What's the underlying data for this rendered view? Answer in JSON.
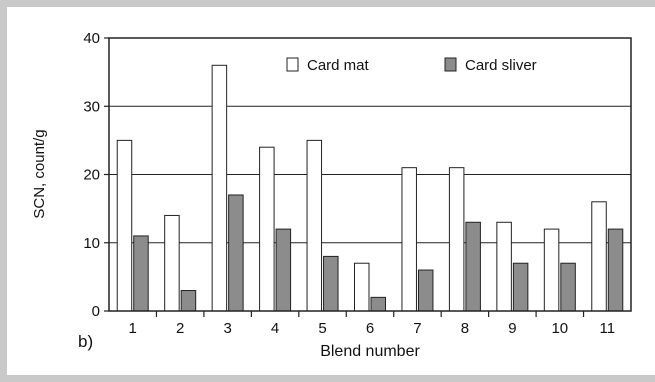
{
  "chart_data": {
    "type": "bar",
    "categories": [
      "1",
      "2",
      "3",
      "4",
      "5",
      "6",
      "7",
      "8",
      "9",
      "10",
      "11"
    ],
    "series": [
      {
        "name": "Card mat",
        "values": [
          25,
          14,
          36,
          24,
          25,
          7,
          21,
          21,
          13,
          12,
          16
        ],
        "color": "#ffffff"
      },
      {
        "name": "Card sliver",
        "values": [
          11,
          3,
          17,
          12,
          8,
          2,
          6,
          13,
          7,
          7,
          12
        ],
        "color": "#8c8c8c"
      }
    ],
    "xlabel": "Blend number",
    "ylabel": "SCN, count/g",
    "ylim": [
      0,
      40
    ],
    "yticks": [
      0,
      10,
      20,
      30,
      40
    ],
    "grid": true,
    "legend": "top-center",
    "panel_label": "b)"
  }
}
